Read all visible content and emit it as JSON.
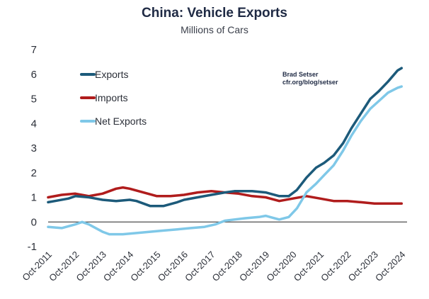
{
  "chart_data": {
    "type": "line",
    "title": "China: Vehicle Exports",
    "subtitle": "Millions of Cars",
    "source": [
      "Brad Setser",
      "cfr.org/blog/setser"
    ],
    "xlabel": "",
    "ylabel": "",
    "ylim": [
      -1,
      7
    ],
    "yticks": [
      "7",
      "6",
      "5",
      "4",
      "3",
      "2",
      "1",
      "0",
      "-1"
    ],
    "ytick_values": [
      7,
      6,
      5,
      4,
      3,
      2,
      1,
      0,
      -1
    ],
    "xlim": [
      2011.75,
      2024.95
    ],
    "x_tick_labels": [
      "Oct-2011",
      "Oct-2012",
      "Oct-2013",
      "Oct-2014",
      "Oct-2015",
      "Oct-2016",
      "Oct-2017",
      "Oct-2018",
      "Oct-2019",
      "Oct-2020",
      "Oct-2021",
      "Oct-2022",
      "Oct-2023",
      "Oct-2024"
    ],
    "x_tick_values": [
      2011.75,
      2012.75,
      2013.75,
      2014.75,
      2015.75,
      2016.75,
      2017.75,
      2018.75,
      2019.75,
      2020.75,
      2021.75,
      2022.75,
      2023.75,
      2024.75
    ],
    "grid": false,
    "legend_position": "top-left",
    "series": [
      {
        "name": "Exports",
        "color": "#1c5a7a",
        "x": [
          2011.75,
          2012.0,
          2012.5,
          2012.75,
          2013.25,
          2013.75,
          2014.25,
          2014.75,
          2015.0,
          2015.5,
          2016.0,
          2016.5,
          2016.75,
          2017.25,
          2017.75,
          2018.25,
          2018.6,
          2018.9,
          2019.25,
          2019.75,
          2020.25,
          2020.6,
          2020.9,
          2021.25,
          2021.6,
          2021.9,
          2022.25,
          2022.6,
          2022.9,
          2023.25,
          2023.6,
          2023.9,
          2024.25,
          2024.6,
          2024.75
        ],
        "values": [
          0.8,
          0.85,
          0.95,
          1.05,
          1.0,
          0.9,
          0.85,
          0.9,
          0.85,
          0.65,
          0.65,
          0.8,
          0.9,
          1.0,
          1.1,
          1.2,
          1.25,
          1.25,
          1.25,
          1.2,
          1.05,
          1.05,
          1.3,
          1.8,
          2.2,
          2.4,
          2.7,
          3.2,
          3.8,
          4.4,
          5.0,
          5.3,
          5.7,
          6.15,
          6.25
        ]
      },
      {
        "name": "Imports",
        "color": "#b01c1c",
        "x": [
          2011.75,
          2012.25,
          2012.75,
          2013.25,
          2013.75,
          2014.25,
          2014.5,
          2014.75,
          2015.25,
          2015.75,
          2016.25,
          2016.75,
          2017.25,
          2017.75,
          2018.25,
          2018.75,
          2019.25,
          2019.75,
          2020.25,
          2020.75,
          2021.25,
          2021.75,
          2022.25,
          2022.75,
          2023.25,
          2023.75,
          2024.25,
          2024.75
        ],
        "values": [
          1.0,
          1.1,
          1.15,
          1.05,
          1.15,
          1.35,
          1.4,
          1.35,
          1.2,
          1.05,
          1.05,
          1.1,
          1.2,
          1.25,
          1.2,
          1.15,
          1.05,
          1.0,
          0.85,
          0.95,
          1.05,
          0.95,
          0.85,
          0.85,
          0.8,
          0.75,
          0.75,
          0.75
        ]
      },
      {
        "name": "Net Exports",
        "color": "#7fc8e8",
        "x": [
          2011.75,
          2012.25,
          2012.75,
          2013.0,
          2013.25,
          2013.75,
          2014.0,
          2014.5,
          2015.0,
          2015.5,
          2016.0,
          2016.5,
          2017.0,
          2017.5,
          2017.9,
          2018.25,
          2018.6,
          2019.0,
          2019.5,
          2019.75,
          2020.25,
          2020.6,
          2020.9,
          2021.25,
          2021.6,
          2021.9,
          2022.25,
          2022.6,
          2022.9,
          2023.25,
          2023.6,
          2023.9,
          2024.25,
          2024.6,
          2024.75
        ],
        "values": [
          -0.2,
          -0.25,
          -0.1,
          0.0,
          -0.1,
          -0.4,
          -0.5,
          -0.5,
          -0.45,
          -0.4,
          -0.35,
          -0.3,
          -0.25,
          -0.2,
          -0.1,
          0.05,
          0.1,
          0.15,
          0.2,
          0.25,
          0.1,
          0.2,
          0.55,
          1.2,
          1.55,
          1.9,
          2.3,
          2.9,
          3.5,
          4.1,
          4.6,
          4.9,
          5.25,
          5.45,
          5.5
        ]
      }
    ]
  }
}
